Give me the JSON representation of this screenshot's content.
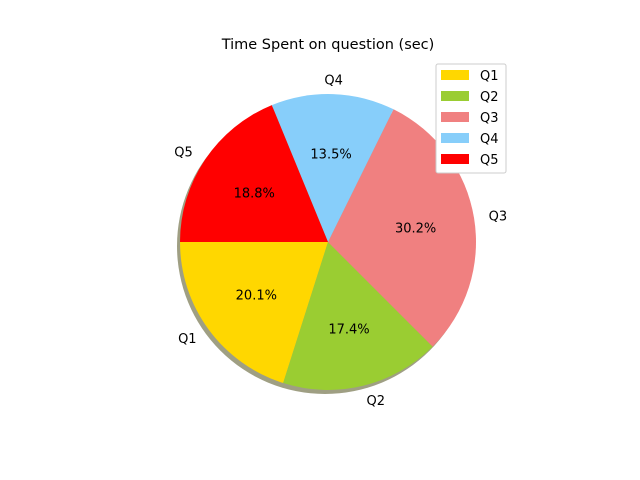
{
  "chart_data": {
    "type": "pie",
    "title": "Time Spent on question (sec)",
    "labels": [
      "Q1",
      "Q2",
      "Q3",
      "Q4",
      "Q5"
    ],
    "values": [
      20.1,
      17.4,
      30.2,
      13.5,
      18.8
    ],
    "percent_labels": [
      "20.1%",
      "17.4%",
      "30.2%",
      "13.5%",
      "18.8%"
    ],
    "colors": [
      "#ffd700",
      "#9acd32",
      "#f08080",
      "#87cefa",
      "#ff0000"
    ],
    "start_angle_deg": 180,
    "direction": "counterclockwise",
    "shadow": true,
    "legend": {
      "position": "top-right",
      "entries": [
        "Q1",
        "Q2",
        "Q3",
        "Q4",
        "Q5"
      ]
    }
  }
}
